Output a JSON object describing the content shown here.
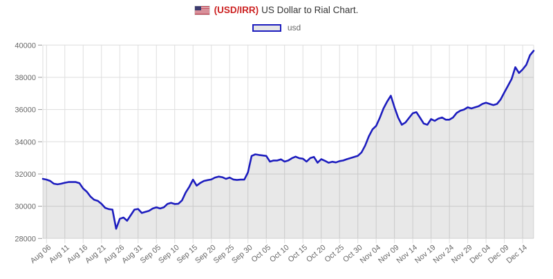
{
  "header": {
    "pair": "(USD/IRR)",
    "rest": "US Dollar to Rial Chart.",
    "flag_icon": "us-flag"
  },
  "legend": {
    "label": "usd"
  },
  "chart_data": {
    "type": "area",
    "title": "(USD/IRR) US Dollar to Rial Chart.",
    "xlabel": "",
    "ylabel": "",
    "ylim": [
      28000,
      40000
    ],
    "y_ticks": [
      28000,
      30000,
      32000,
      34000,
      36000,
      38000,
      40000
    ],
    "grid": true,
    "legend_position": "top-center",
    "x_tick_labels": [
      "Aug 06",
      "Aug 11",
      "Aug 16",
      "Aug 21",
      "Aug 26",
      "Aug 31",
      "Sep 05",
      "Sep 10",
      "Sep 15",
      "Sep 20",
      "Sep 25",
      "Sep 30",
      "Oct 05",
      "Oct 10",
      "Oct 15",
      "Oct 20",
      "Oct 25",
      "Oct 30",
      "Nov 04",
      "Nov 09",
      "Nov 14",
      "Nov 19",
      "Nov 24",
      "Nov 29",
      "Dec 04",
      "Dec 09",
      "Dec 14"
    ],
    "x_tick_first_index": 1,
    "x_tick_step_days": 5,
    "colors": {
      "line": "#1c1cbe",
      "area_fill": "rgba(0,0,0,0.09)",
      "grid": "#dedede",
      "axis_tick": "#999999",
      "axis_label": "#666666"
    },
    "series": [
      {
        "name": "usd",
        "values": [
          31700,
          31650,
          31570,
          31400,
          31360,
          31400,
          31460,
          31500,
          31500,
          31500,
          31430,
          31100,
          30900,
          30600,
          30400,
          30330,
          30150,
          29900,
          29820,
          29790,
          28600,
          29220,
          29300,
          29100,
          29450,
          29790,
          29830,
          29580,
          29650,
          29720,
          29860,
          29930,
          29860,
          29930,
          30140,
          30210,
          30140,
          30150,
          30360,
          30850,
          31210,
          31650,
          31280,
          31450,
          31570,
          31620,
          31660,
          31780,
          31840,
          31800,
          31700,
          31780,
          31660,
          31630,
          31650,
          31650,
          32100,
          33120,
          33220,
          33180,
          33150,
          33120,
          32770,
          32840,
          32840,
          32910,
          32770,
          32840,
          32980,
          33080,
          32980,
          32950,
          32770,
          32990,
          33060,
          32700,
          32920,
          32820,
          32700,
          32760,
          32720,
          32800,
          32840,
          32920,
          32990,
          33060,
          33130,
          33340,
          33770,
          34340,
          34770,
          34990,
          35490,
          36070,
          36500,
          36860,
          36140,
          35500,
          35060,
          35200,
          35490,
          35770,
          35840,
          35490,
          35130,
          35060,
          35410,
          35300,
          35440,
          35510,
          35370,
          35370,
          35510,
          35790,
          35930,
          36000,
          36140,
          36070,
          36140,
          36210,
          36350,
          36420,
          36350,
          36280,
          36350,
          36630,
          37060,
          37480,
          37900,
          38630,
          38270,
          38490,
          38780,
          39370,
          39650
        ]
      }
    ]
  }
}
